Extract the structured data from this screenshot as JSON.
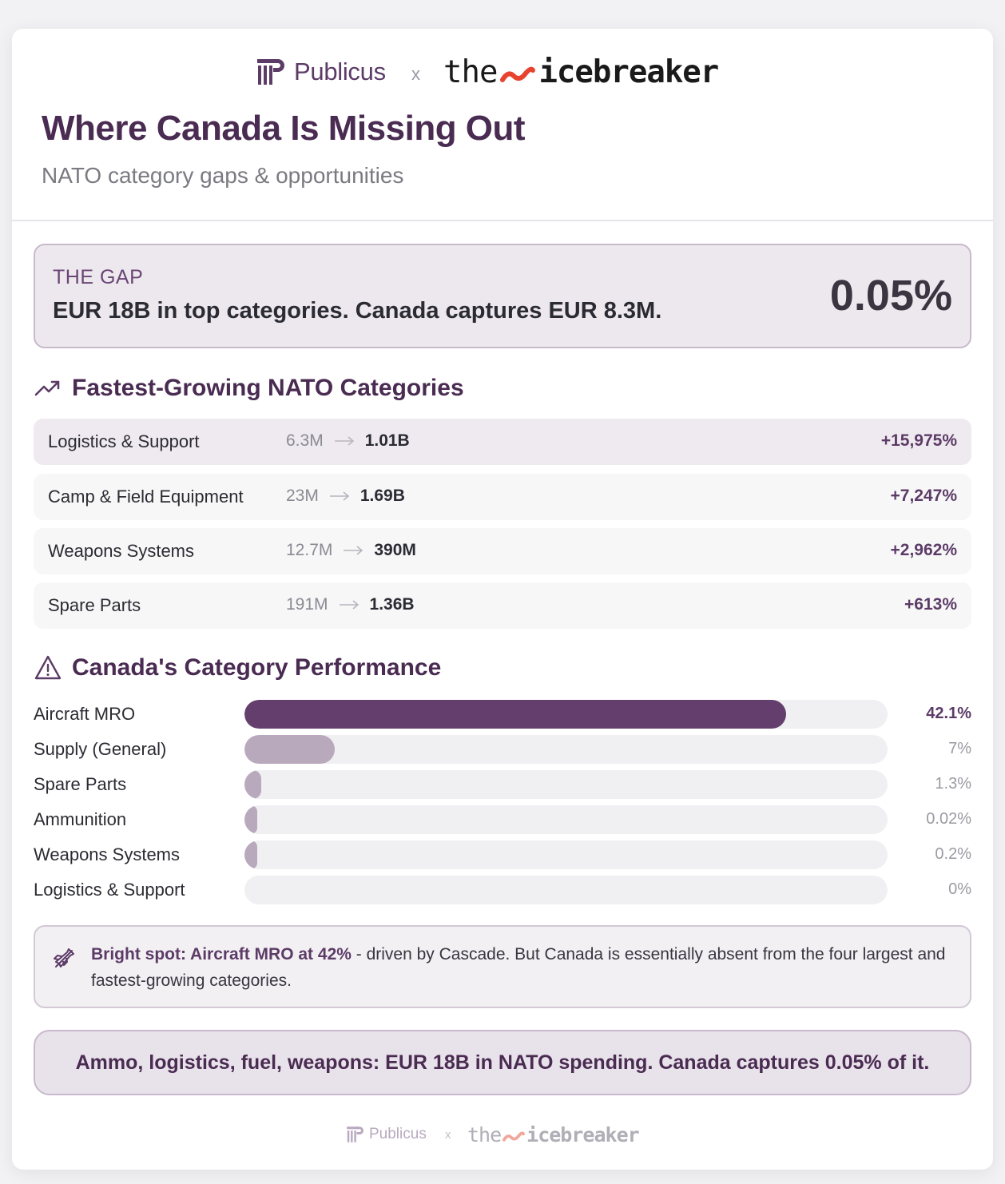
{
  "logos": {
    "publicus": "Publicus",
    "separator": "x",
    "icebreaker_prefix": "the",
    "icebreaker_word": "icebreaker"
  },
  "header": {
    "title": "Where Canada Is Missing Out",
    "subtitle": "NATO category gaps & opportunities"
  },
  "gap": {
    "label": "THE GAP",
    "text": "EUR 18B in top categories. Canada captures EUR 8.3M.",
    "value": "0.05%"
  },
  "growth": {
    "title": "Fastest-Growing NATO Categories",
    "rows": [
      {
        "category": "Logistics & Support",
        "from": "6.3M",
        "to": "1.01B",
        "pct": "+15,975%"
      },
      {
        "category": "Camp & Field Equipment",
        "from": "23M",
        "to": "1.69B",
        "pct": "+7,247%"
      },
      {
        "category": "Weapons Systems",
        "from": "12.7M",
        "to": "390M",
        "pct": "+2,962%"
      },
      {
        "category": "Spare Parts",
        "from": "191M",
        "to": "1.36B",
        "pct": "+613%"
      }
    ]
  },
  "performance": {
    "title": "Canada's Category Performance",
    "rows": [
      {
        "label": "Aircraft MRO",
        "value": 42.1,
        "display": "42.1%"
      },
      {
        "label": "Supply (General)",
        "value": 7,
        "display": "7%"
      },
      {
        "label": "Spare Parts",
        "value": 1.3,
        "display": "1.3%"
      },
      {
        "label": "Ammunition",
        "value": 0.02,
        "display": "0.02%"
      },
      {
        "label": "Weapons Systems",
        "value": 0.2,
        "display": "0.2%"
      },
      {
        "label": "Logistics & Support",
        "value": 0,
        "display": "0%"
      }
    ]
  },
  "bright_spot": {
    "strong": "Bright spot: Aircraft MRO at 42%",
    "rest": " - driven by Cascade. But Canada is essentially absent from the four largest and fastest-growing categories."
  },
  "conclusion": "Ammo, logistics, fuel, weapons: EUR 18B in NATO spending. Canada captures 0.05% of it.",
  "colors": {
    "brand_purple": "#5c3b67",
    "bar_primary": "#643e6d",
    "bar_secondary": "#b9a9bd",
    "wave_red": "#e8432e"
  }
}
